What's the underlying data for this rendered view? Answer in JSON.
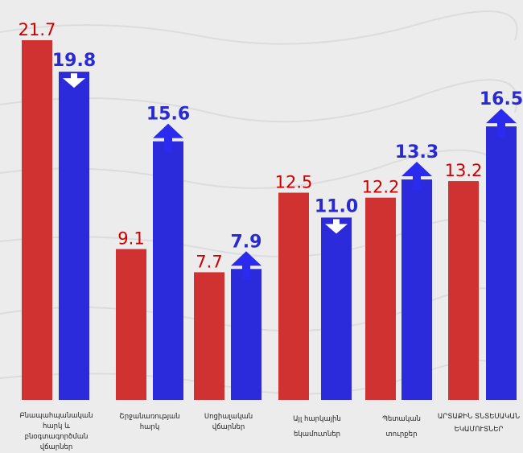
{
  "chart_data": {
    "type": "bar",
    "title": "",
    "xlabel": "",
    "ylabel": "",
    "ylim": [
      0,
      22.5
    ],
    "grid": false,
    "legend": "none",
    "categories": [
      "Բնապահպանական հարկ և բնօգտագործման վճարներ",
      "Շրջանառության հարկ",
      "Սոցիալական վճարներ",
      "Այլ հարկային եկամուտներ",
      "Պետական տուրքեր",
      "ԱՐՏԱՔԻՆ ՏՆՏԵՍԱԿԱՆ ԵԿԱՄՈՒՏՆԵՐ"
    ],
    "series": [
      {
        "values": [
          21.7,
          9.1,
          7.7,
          12.5,
          12.2,
          13.2
        ],
        "labels": [
          "21.7",
          "9.1",
          "7.7",
          "12.5",
          "12.2",
          "13.2"
        ],
        "color": "#d03232",
        "label_color": "#cc0000"
      },
      {
        "values": [
          19.8,
          15.6,
          7.9,
          11.0,
          13.3,
          16.5
        ],
        "labels": [
          "19.8",
          "15.6",
          "7.9",
          "11.0",
          "13.3",
          "16.5"
        ],
        "color": "#2b2bdc",
        "label_color": "#2a2ad2",
        "trend": [
          "down",
          "up",
          "up",
          "down",
          "up",
          "up"
        ]
      }
    ]
  },
  "category_label_lines": [
    "Բնապահպանական հարկ և\nբնօգտագործման վճարներ",
    "Շրջանառության\nհարկ",
    "Սոցիալական\nվճարներ",
    "Այլ հարկային\nեկամուտներ",
    "Պետական\nտուրքեր",
    "ԱՐՏԱՔԻՆ ՏՆՏԵՍԱԿԱՆ\nԵԿԱՄՈՒՏՆԵՐ"
  ],
  "colors": {
    "arrow": "#2b2bf0",
    "arrow_head_down": "#ffffff",
    "background": "#ececec"
  }
}
